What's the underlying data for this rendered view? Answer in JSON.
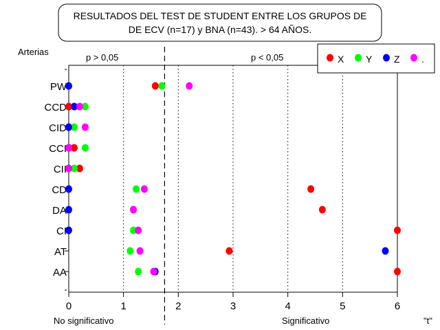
{
  "chart_data": {
    "type": "scatter",
    "title": [
      "RESULTADOS DEL TEST DE STUDENT ENTRE LOS GRUPOS DE",
      "DE ECV (n=17) y BNA (n=43). > 64 AÑOS."
    ],
    "ylabel": "Arterias",
    "xlabel": "\"t\"",
    "xlim": [
      0,
      6
    ],
    "xticks": [
      "0",
      "1",
      "2",
      "3",
      "4",
      "5",
      "6"
    ],
    "grid": "vertical-dotted",
    "threshold": 1.75,
    "region_top_labels": [
      "p > 0,05",
      "p < 0,05"
    ],
    "region_bottom_labels": [
      "No significativo",
      "Significativo"
    ],
    "legend_position": "top-right",
    "categories": [
      "PW",
      "CCD",
      "CID",
      "CCI",
      "CII",
      "CD",
      "DA",
      "CI",
      "AT",
      "AA"
    ],
    "series": [
      {
        "name": "X",
        "color": "#ff0000",
        "values": [
          1.58,
          0.0,
          0.0,
          0.1,
          0.2,
          4.42,
          4.63,
          6.0,
          2.93,
          6.0
        ]
      },
      {
        "name": "Y",
        "color": "#00ff00",
        "values": [
          1.7,
          0.3,
          0.1,
          0.3,
          0.1,
          1.23,
          1.18,
          1.18,
          1.12,
          1.27
        ]
      },
      {
        "name": "Z",
        "color": "#0000ff",
        "values": [
          0.0,
          0.1,
          0.0,
          0.0,
          0.0,
          0.0,
          0.0,
          0.0,
          5.78,
          1.58
        ]
      },
      {
        "name": ".",
        "color": "#ff00ff",
        "values": [
          2.2,
          0.2,
          0.3,
          0.0,
          0.0,
          1.38,
          1.18,
          1.27,
          1.3,
          1.55
        ]
      }
    ]
  }
}
